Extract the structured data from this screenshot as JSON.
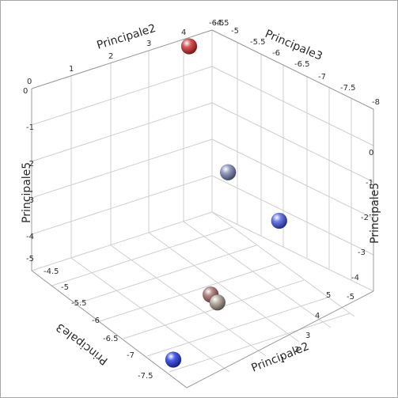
{
  "chart_data": {
    "type": "scatter",
    "title": "",
    "axis_labels": {
      "top_left": "Principale2",
      "top_right": "Principale3",
      "left": "Principale5",
      "right": "Principale5",
      "bottom_left": "Principale3",
      "bottom_right": "Principale2"
    },
    "tick_labels": {
      "top_left_principale2": [
        "0",
        "1",
        "2",
        "3",
        "4"
      ],
      "top_right_principale3": [
        "-4.5",
        "-5",
        "-5.5",
        "-6",
        "-6.5",
        "-7",
        "-7.5",
        "-8"
      ],
      "left_principale5": [
        "0",
        "-1",
        "-2",
        "-3",
        "-4",
        "-5"
      ],
      "right_principale5": [
        "0",
        "-1",
        "-2",
        "-3",
        "-4",
        "-5"
      ],
      "bottom_left_principale3": [
        "-4.5",
        "-5",
        "-5.5",
        "-6",
        "-6.5",
        "-7",
        "-7.5"
      ],
      "bottom_right_principale2": [
        "1",
        "2",
        "3",
        "4",
        "5"
      ],
      "corner_top": "-6.5"
    },
    "axes": {
      "principale2_range": [
        0,
        5
      ],
      "principale3_range": [
        -8,
        -4.5
      ],
      "principale5_range": [
        -5,
        0
      ]
    },
    "points": [
      {
        "principale2": 4.1,
        "principale3": -4.7,
        "principale5": 0.0,
        "color": "#b22222"
      },
      {
        "principale2": 1.3,
        "principale3": -7.7,
        "principale5": -3.3,
        "color": "#9a6868"
      },
      {
        "principale2": 1.6,
        "principale3": -7.6,
        "principale5": -3.7,
        "color": "#a09890"
      },
      {
        "principale2": 3.7,
        "principale3": -6.0,
        "principale5": -2.2,
        "color": "#6e7396"
      },
      {
        "principale2": 4.2,
        "principale3": -6.8,
        "principale5": -3.0,
        "color": "#3d4fc8"
      },
      {
        "principale2": 0.5,
        "principale3": -7.5,
        "principale5": -5.0,
        "color": "#1f32cc"
      }
    ],
    "grid": true,
    "legend": "none"
  }
}
